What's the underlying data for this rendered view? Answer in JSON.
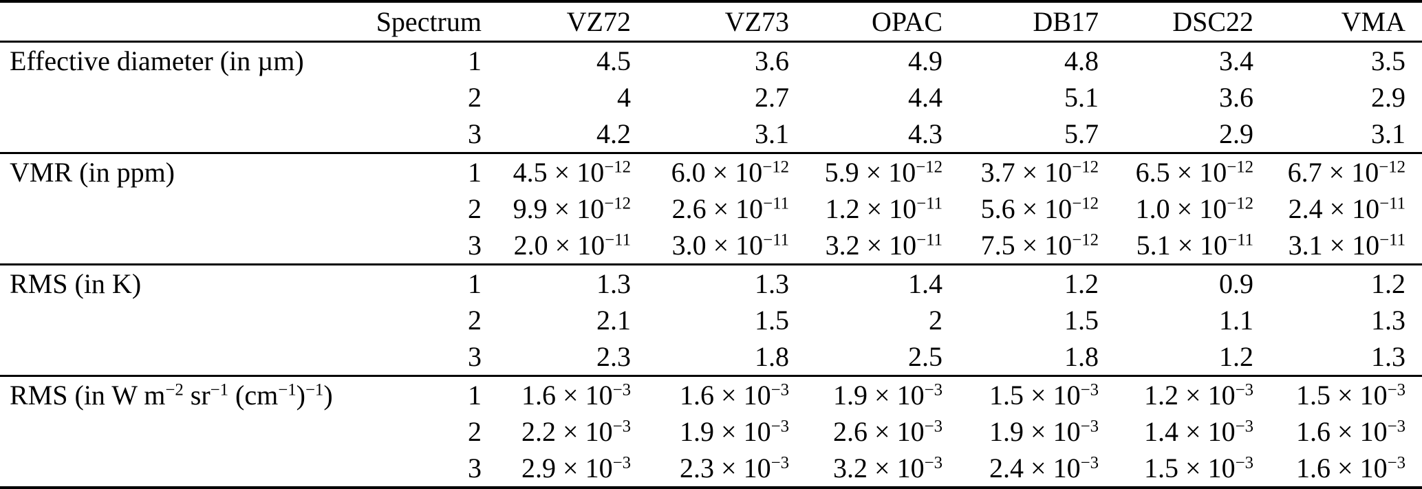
{
  "table": {
    "columns": [
      "",
      "Spectrum",
      "VZ72",
      "VZ73",
      "OPAC",
      "DB17",
      "DSC22",
      "VMA"
    ],
    "groups": [
      {
        "label": "Effective diameter (in µm)",
        "rows": [
          {
            "spectrum": "1",
            "values": [
              "4.5",
              "3.6",
              "4.9",
              "4.8",
              "3.4",
              "3.5"
            ]
          },
          {
            "spectrum": "2",
            "values": [
              "4",
              "2.7",
              "4.4",
              "5.1",
              "3.6",
              "2.9"
            ]
          },
          {
            "spectrum": "3",
            "values": [
              "4.2",
              "3.1",
              "4.3",
              "5.7",
              "2.9",
              "3.1"
            ]
          }
        ]
      },
      {
        "label": "VMR (in ppm)",
        "rows": [
          {
            "spectrum": "1",
            "values": [
              "4.5 × 10^{−12}",
              "6.0 × 10^{−12}",
              "5.9 × 10^{−12}",
              "3.7 × 10^{−12}",
              "6.5 × 10^{−12}",
              "6.7 × 10^{−12}"
            ]
          },
          {
            "spectrum": "2",
            "values": [
              "9.9 × 10^{−12}",
              "2.6 × 10^{−11}",
              "1.2 × 10^{−11}",
              "5.6 × 10^{−12}",
              "1.0 × 10^{−12}",
              "2.4 × 10^{−11}"
            ]
          },
          {
            "spectrum": "3",
            "values": [
              "2.0 × 10^{−11}",
              "3.0 × 10^{−11}",
              "3.2 × 10^{−11}",
              "7.5 × 10^{−12}",
              "5.1 × 10^{−11}",
              "3.1 × 10^{−11}"
            ]
          }
        ]
      },
      {
        "label": "RMS (in K)",
        "rows": [
          {
            "spectrum": "1",
            "values": [
              "1.3",
              "1.3",
              "1.4",
              "1.2",
              "0.9",
              "1.2"
            ]
          },
          {
            "spectrum": "2",
            "values": [
              "2.1",
              "1.5",
              "2",
              "1.5",
              "1.1",
              "1.3"
            ]
          },
          {
            "spectrum": "3",
            "values": [
              "2.3",
              "1.8",
              "2.5",
              "1.8",
              "1.2",
              "1.3"
            ]
          }
        ]
      },
      {
        "label": "RMS (in W m^{−2} sr^{−1} (cm^{−1})^{−1})",
        "rows": [
          {
            "spectrum": "1",
            "values": [
              "1.6 × 10^{−3}",
              "1.6 × 10^{−3}",
              "1.9 × 10^{−3}",
              "1.5 × 10^{−3}",
              "1.2 × 10^{−3}",
              "1.5 × 10^{−3}"
            ]
          },
          {
            "spectrum": "2",
            "values": [
              "2.2 × 10^{−3}",
              "1.9 × 10^{−3}",
              "2.6 × 10^{−3}",
              "1.9 × 10^{−3}",
              "1.4 × 10^{−3}",
              "1.6 × 10^{−3}"
            ]
          },
          {
            "spectrum": "3",
            "values": [
              "2.9 × 10^{−3}",
              "2.3 × 10^{−3}",
              "3.2 × 10^{−3}",
              "2.4 × 10^{−3}",
              "1.5 × 10^{−3}",
              "1.6 × 10^{−3}"
            ]
          }
        ]
      }
    ]
  }
}
